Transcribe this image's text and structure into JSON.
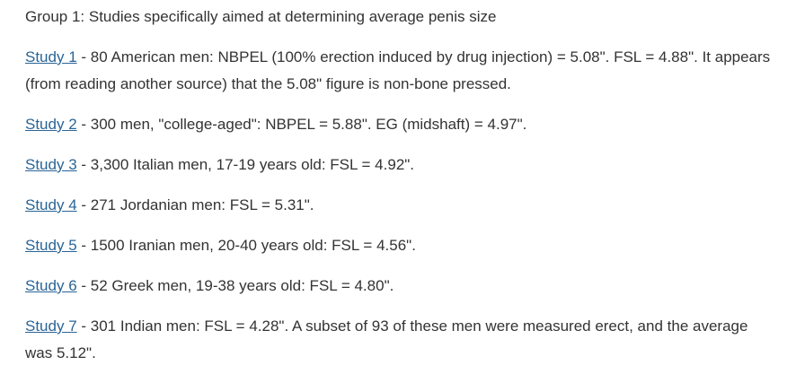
{
  "page": {
    "heading": "Group 1: Studies specifically aimed at determining average penis size",
    "text_color": "#333333",
    "link_color": "#2a6496",
    "background_color": "#ffffff",
    "studies": [
      {
        "link_label": "Study 1",
        "text": " - 80 American men: NBPEL (100% erection induced by drug injection) = 5.08\". FSL = 4.88\". It appears (from reading another source) that the 5.08\" figure is non-bone pressed."
      },
      {
        "link_label": "Study 2",
        "text": " - 300 men, \"college-aged\": NBPEL = 5.88\". EG (midshaft) = 4.97\"."
      },
      {
        "link_label": "Study 3",
        "text": " - 3,300 Italian men, 17-19 years old: FSL = 4.92\"."
      },
      {
        "link_label": "Study 4",
        "text": " - 271 Jordanian men: FSL = 5.31\"."
      },
      {
        "link_label": "Study 5",
        "text": " - 1500 Iranian men, 20-40 years old: FSL = 4.56\"."
      },
      {
        "link_label": "Study 6",
        "text": " - 52 Greek men, 19-38 years old: FSL = 4.80\"."
      },
      {
        "link_label": "Study 7",
        "text": " - 301 Indian men: FSL = 4.28\". A subset of 93 of these men were measured erect, and the average was 5.12\"."
      }
    ]
  }
}
